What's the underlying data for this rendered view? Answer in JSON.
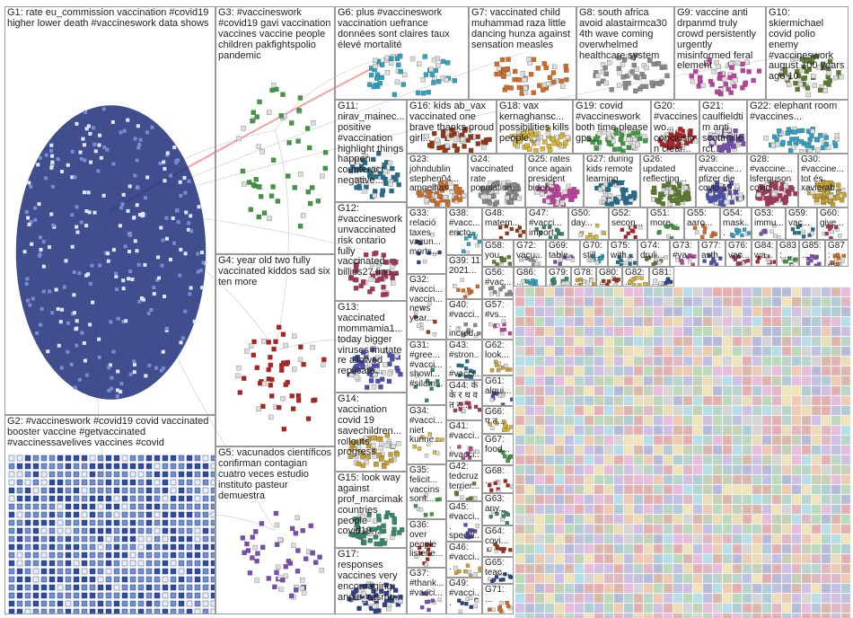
{
  "groups": [
    {
      "id": "G1",
      "label": "G1: rate eu_commission vaccination #covid19 higher lower death #vaccineswork data shows"
    },
    {
      "id": "G2",
      "label": "G2: #vaccineswork #covid19 covid vaccinated booster vaccine #getvaccinated #vaccinessavelives vaccines #covid"
    },
    {
      "id": "G3",
      "label": "G3: #vaccineswork #covid19 gavi vaccination vaccines vaccine people children pakfightspolio pandemic"
    },
    {
      "id": "G4",
      "label": "G4: year old two fully vaccinated kiddos sad six ten more"
    },
    {
      "id": "G5",
      "label": "G5: vacunados científicos confirman contagian cuatro veces estudio instituto pasteur demuestra"
    },
    {
      "id": "G6",
      "label": "G6: plus #vaccineswork vaccination uefrance données sont claires taux élevé mortalité"
    },
    {
      "id": "G7",
      "label": "G7: vaccinated child muhammad raza little dancing hunza against sensation measles"
    },
    {
      "id": "G8",
      "label": "G8: south africa avoid alastairmca30 4th wave coming overwhelmed healthcare system"
    },
    {
      "id": "G9",
      "label": "G9: vaccine anti drpanmd truly crowd persistently urgently misinformed feral element"
    },
    {
      "id": "G10",
      "label": "G10: skiermichael covid polio enemy #vaccineswork august 100 years ago 10"
    },
    {
      "id": "G11",
      "label": "G11: nirav_mainec... positive #vaccination highlight things happen counteract negative..."
    },
    {
      "id": "G12",
      "label": "G12: #vaccineswork unvaccinated risk ontario fully vaccinated billius27 line..."
    },
    {
      "id": "G13",
      "label": "G13: vaccinated mommamia1... today bigger viruses mutate re allowed replicate..."
    },
    {
      "id": "G14",
      "label": "G14: vaccination covid 19 savechildren... rollouts progress"
    },
    {
      "id": "G15",
      "label": "G15: look way against prof_marcimak countries people covid19..."
    },
    {
      "id": "G16",
      "label": "G16: kids ab_vax vaccinated one brave thanks proud girl..."
    },
    {
      "id": "G17",
      "label": "G17: responses vaccines very encouraging angie_rasmu..."
    },
    {
      "id": "G18",
      "label": "G18: vax kernaghansc... possibilities kills people..."
    },
    {
      "id": "G19",
      "label": "G19: covid #vaccineswork both time please gps..."
    },
    {
      "id": "G20",
      "label": "G20: #vaccineswo... conclusion clear..."
    },
    {
      "id": "G21",
      "label": "G21: caulfieldtim anti scottmillerct..."
    },
    {
      "id": "G22",
      "label": "G22: elephant room #vaccines..."
    },
    {
      "id": "G23",
      "label": "G23: johndublin stephen04... amgelhas..."
    },
    {
      "id": "G24",
      "label": "G24: vaccinated rate population..."
    },
    {
      "id": "G25",
      "label": "G25: rates once again president biden..."
    },
    {
      "id": "G26",
      "label": "G26: updated reflecting..."
    },
    {
      "id": "G27",
      "label": "G27: during kids remote learning..."
    },
    {
      "id": "G28",
      "label": "G28: #vaccine... lsferguson covid..."
    },
    {
      "id": "G29",
      "label": "G29: #vaccine... pfizer die covid 19..."
    },
    {
      "id": "G30",
      "label": "G30: #vaccine... tot és xavierab..."
    },
    {
      "id": "G31",
      "label": "G31: #gree... #vacci... showi... #silam..."
    },
    {
      "id": "G32",
      "label": "G32: #vacci... vaccin... news year..."
    },
    {
      "id": "G33",
      "label": "G33: relació taxes vacun... morts..."
    },
    {
      "id": "G34",
      "label": "G34: #vacci... niet kunne..."
    },
    {
      "id": "G35",
      "label": "G35: felicit... vaccins sont..."
    },
    {
      "id": "G36",
      "label": "G36: over people listene..."
    },
    {
      "id": "G37",
      "label": "G37: #thank... #vacci..."
    },
    {
      "id": "G38",
      "label": "G38: #vacc... ericto..."
    },
    {
      "id": "G39",
      "label": "G39: 11 2021..."
    },
    {
      "id": "G40",
      "label": "G40: #vacci... incred..."
    },
    {
      "id": "G41",
      "label": "G41: #vacci... #vacci..."
    },
    {
      "id": "G42",
      "label": "G42: tedcruz terrier..."
    },
    {
      "id": "G43",
      "label": "G43: #stron... #vacci..."
    },
    {
      "id": "G44",
      "label": "G44: के के र थ व त र..."
    },
    {
      "id": "G45",
      "label": "G45: #vacci... specifi..."
    },
    {
      "id": "G46",
      "label": "G46: #vacci..."
    },
    {
      "id": "G47",
      "label": "G47: #vacci... import..."
    },
    {
      "id": "G48",
      "label": "G48: matem..."
    },
    {
      "id": "G49",
      "label": "G49: #vacci..."
    },
    {
      "id": "G50",
      "label": "G50: day..."
    },
    {
      "id": "G51",
      "label": "G51: more..."
    },
    {
      "id": "G52",
      "label": "G52: secon..."
    },
    {
      "id": "G53",
      "label": "G53: immu..."
    },
    {
      "id": "G54",
      "label": "G54: mask..."
    },
    {
      "id": "G55",
      "label": "G55: aaro..."
    },
    {
      "id": "G56",
      "label": "G56: #vac..."
    },
    {
      "id": "G57",
      "label": "G57: #vs..."
    },
    {
      "id": "G58",
      "label": "G58: you..."
    },
    {
      "id": "G59",
      "label": "G59: vac..."
    },
    {
      "id": "G60",
      "label": "G60: give..."
    },
    {
      "id": "G61",
      "label": "G61: algui..."
    },
    {
      "id": "G62",
      "label": "G62: look..."
    },
    {
      "id": "G63",
      "label": "G63: any..."
    },
    {
      "id": "G64",
      "label": "G64: covi..."
    },
    {
      "id": "G65",
      "label": "G65: teac..."
    },
    {
      "id": "G66",
      "label": "G66: प त..."
    },
    {
      "id": "G67",
      "label": "G67: food..."
    },
    {
      "id": "G68",
      "label": "G68: ..."
    },
    {
      "id": "G69",
      "label": "G69: table..."
    },
    {
      "id": "G70",
      "label": "G70: still..."
    },
    {
      "id": "G71",
      "label": "G71: ..."
    },
    {
      "id": "G72",
      "label": "G72: vacu..."
    },
    {
      "id": "G73",
      "label": "G73: #va..."
    },
    {
      "id": "G74",
      "label": "G74: druli..."
    },
    {
      "id": "G75",
      "label": "G75: with..."
    },
    {
      "id": "G76",
      "label": "G76: vac..."
    },
    {
      "id": "G77",
      "label": "G77: asth..."
    },
    {
      "id": "G78",
      "label": "G78: ..."
    },
    {
      "id": "G79",
      "label": "G79: ..."
    },
    {
      "id": "G80",
      "label": "G80: ..."
    },
    {
      "id": "G81",
      "label": "G81: ..."
    },
    {
      "id": "G82",
      "label": "G82: ..."
    },
    {
      "id": "G83",
      "label": "G83: ..."
    },
    {
      "id": "G84",
      "label": "G84: wa..."
    },
    {
      "id": "G85",
      "label": "G85: ..."
    },
    {
      "id": "G86",
      "label": "G86: ..."
    },
    {
      "id": "G87",
      "label": "G87: és..."
    }
  ]
}
